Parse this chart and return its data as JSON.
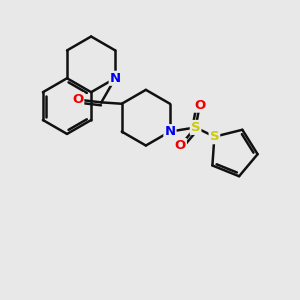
{
  "background_color": "#e8e8e8",
  "atom_colors": {
    "N": "#0000ee",
    "O": "#ee0000",
    "S_thio": "#cccc00",
    "S_sulf": "#cccc00"
  },
  "bond_color": "#111111",
  "bond_width": 1.8,
  "figsize": [
    3.0,
    3.0
  ],
  "dpi": 100
}
